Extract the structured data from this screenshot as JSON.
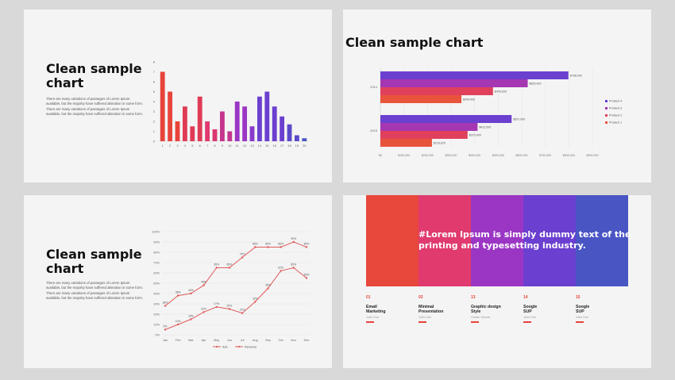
{
  "slides": [
    {
      "title_lines": [
        "Clean sample",
        "chart"
      ],
      "body": "There are many variations of passages of Lorem Ipsum available, but the majority have suffered alteration in some form. There are many variations of passages of Lorem Ipsum available, but the majority have suffered alteration in some form."
    },
    {
      "title": "Clean sample chart"
    },
    {
      "title_lines": [
        "Clean sample",
        "chart"
      ],
      "body": "There are many variations of passages of Lorem Ipsum available, but the majority have suffered alteration in some form. There are many variations of passages of Lorem Ipsum available, but the majority have suffered alteration in some form."
    },
    {
      "hero": "#Lorem Ipsum is simply dummy text of the printing and typesetting industry.",
      "band_colors": [
        "#e8473b",
        "#e03a6e",
        "#9b36c4",
        "#6b3fcf",
        "#4a55c4"
      ],
      "items": [
        {
          "num": "01",
          "head": "Email\nMarketing",
          "sub": "John Doe"
        },
        {
          "num": "02",
          "head": "Minimal\nPresentation",
          "sub": "John Doe"
        },
        {
          "num": "13",
          "head": "Graphic design\nStyle",
          "sub": "Hunter Woods"
        },
        {
          "num": "14",
          "head": "Soogle\nSUP",
          "sub": "John Doe"
        },
        {
          "num": "15",
          "head": "Soogle\nSUP",
          "sub": "John Doe"
        }
      ]
    }
  ],
  "chart_data": [
    {
      "type": "bar",
      "categories": [
        "1",
        "2",
        "3",
        "4",
        "5",
        "6",
        "7",
        "8",
        "9",
        "10",
        "11",
        "12",
        "13",
        "14",
        "15",
        "16",
        "17",
        "18",
        "19",
        "20"
      ],
      "values": [
        7,
        5,
        2,
        3.5,
        1.5,
        4.5,
        2,
        1.2,
        3,
        1,
        4,
        3.5,
        1.5,
        4.5,
        5,
        3.5,
        2.5,
        1.7,
        0.6,
        0.3
      ],
      "colors": [
        "#e8433b",
        "#e8433b",
        "#e8433b",
        "#e03a55",
        "#e03a55",
        "#e03a55",
        "#e03a6e",
        "#d9376f",
        "#c4358e",
        "#c4358e",
        "#9b36c4",
        "#9b36c4",
        "#8a3acb",
        "#6b3fcf",
        "#6b3fcf",
        "#6b3fcf",
        "#6b3fcf",
        "#5a4ac9",
        "#5a4ac9",
        "#4a55c4"
      ],
      "ylim": [
        0,
        8
      ],
      "yticks": [
        "0",
        "1",
        "2",
        "3",
        "4",
        "5",
        "6",
        "7",
        "8"
      ]
    },
    {
      "type": "bar",
      "orientation": "horizontal",
      "groups": [
        "2014",
        "2015"
      ],
      "series": [
        {
          "name": "Product 4",
          "color": "#6b3fcf",
          "values": [
            798000,
            557000
          ],
          "labels": [
            "$798,000",
            "$557,000"
          ]
        },
        {
          "name": "Product 3",
          "color": "#a537b2",
          "values": [
            625400,
            412500
          ],
          "labels": [
            "$625,400",
            "$412,500"
          ]
        },
        {
          "name": "Product 2",
          "color": "#e0405c",
          "values": [
            478000,
            370000
          ],
          "labels": [
            "$478,000",
            "$370,000"
          ]
        },
        {
          "name": "Product 1",
          "color": "#e8533b",
          "values": [
            344000,
            218878
          ],
          "labels": [
            "$344,000",
            "$218,878"
          ]
        }
      ],
      "xlim": [
        0,
        900000
      ],
      "xticks": [
        "$0",
        "$100,000",
        "$200,000",
        "$300,000",
        "$400,000",
        "$500,000",
        "$600,000",
        "$700,000",
        "$800,000",
        "$900,000"
      ],
      "legend": "right"
    },
    {
      "type": "line",
      "categories": [
        "Jan",
        "Feb",
        "Mar",
        "Apr",
        "May",
        "Jun",
        "Jul",
        "Aug",
        "Sep",
        "Oct",
        "Nov",
        "Dec"
      ],
      "series": [
        {
          "name": "Ads",
          "values": [
            28,
            38,
            40,
            48,
            65,
            65,
            75,
            85,
            85,
            85,
            90,
            85
          ]
        },
        {
          "name": "Revenue",
          "values": [
            5,
            10,
            15,
            22,
            27,
            25,
            21,
            32,
            45,
            62,
            65,
            55
          ]
        }
      ],
      "ylim": [
        0,
        100
      ],
      "yticks": [
        "0%",
        "10%",
        "20%",
        "30%",
        "40%",
        "50%",
        "60%",
        "70%",
        "80%",
        "90%",
        "100%"
      ],
      "legend": "bottom",
      "color": "#e05a5a"
    }
  ]
}
